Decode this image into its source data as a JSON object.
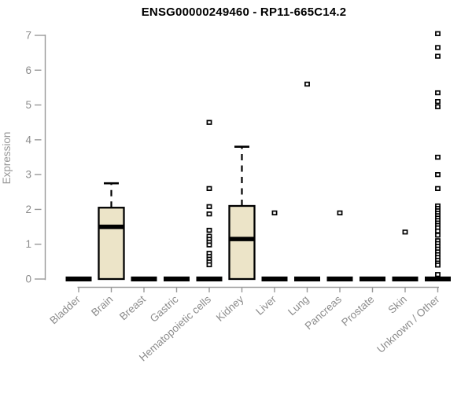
{
  "title": "ENSG00000249460 - RP11-665C14.2",
  "chart_data": {
    "type": "boxplot",
    "title": "ENSG00000249460 - RP11-665C14.2",
    "xlabel": "",
    "ylabel": "Expression",
    "ylim": [
      0,
      7
    ],
    "yticks": [
      0,
      1,
      2,
      3,
      4,
      5,
      6,
      7
    ],
    "grid": false,
    "legend": "none",
    "categories": [
      "Bladder",
      "Brain",
      "Breast",
      "Gastric",
      "Hematopoietic cells",
      "Kidney",
      "Liver",
      "Lung",
      "Pancreas",
      "Prostate",
      "Skin",
      "Unknown / Other"
    ],
    "series": [
      {
        "category": "Bladder",
        "q1": 0,
        "median": 0,
        "q3": 0,
        "whisker_high": null,
        "outliers": []
      },
      {
        "category": "Brain",
        "q1": 0,
        "median": 1.5,
        "q3": 2.05,
        "whisker_high": 2.75,
        "outliers": []
      },
      {
        "category": "Breast",
        "q1": 0,
        "median": 0,
        "q3": 0,
        "whisker_high": null,
        "outliers": []
      },
      {
        "category": "Gastric",
        "q1": 0,
        "median": 0,
        "q3": 0,
        "whisker_high": null,
        "outliers": []
      },
      {
        "category": "Hematopoietic cells",
        "q1": 0,
        "median": 0,
        "q3": 0,
        "whisker_high": null,
        "outliers": [
          4.5,
          2.6,
          2.08,
          1.87,
          1.4,
          1.23,
          1.14,
          1.06,
          0.98,
          0.74,
          0.65,
          0.57,
          0.49,
          0.41
        ]
      },
      {
        "category": "Kidney",
        "q1": 0,
        "median": 1.15,
        "q3": 2.1,
        "whisker_high": 3.8,
        "outliers": []
      },
      {
        "category": "Liver",
        "q1": 0,
        "median": 0,
        "q3": 0,
        "whisker_high": null,
        "outliers": [
          1.9
        ]
      },
      {
        "category": "Lung",
        "q1": 0,
        "median": 0,
        "q3": 0,
        "whisker_high": null,
        "outliers": [
          5.6
        ]
      },
      {
        "category": "Pancreas",
        "q1": 0,
        "median": 0,
        "q3": 0,
        "whisker_high": null,
        "outliers": [
          1.9
        ]
      },
      {
        "category": "Prostate",
        "q1": 0,
        "median": 0,
        "q3": 0,
        "whisker_high": null,
        "outliers": []
      },
      {
        "category": "Skin",
        "q1": 0,
        "median": 0,
        "q3": 0,
        "whisker_high": null,
        "outliers": [
          1.35
        ]
      },
      {
        "category": "Unknown / Other",
        "q1": 0,
        "median": 0,
        "q3": 0,
        "whisker_high": null,
        "outliers": [
          7.05,
          6.65,
          6.4,
          5.35,
          5.1,
          4.95,
          3.5,
          3.0,
          2.6,
          2.1,
          2.03,
          1.96,
          1.89,
          1.82,
          1.75,
          1.68,
          1.61,
          1.54,
          1.47,
          1.38,
          1.26,
          1.1,
          1.02,
          0.94,
          0.86,
          0.78,
          0.7,
          0.62,
          0.54,
          0.46,
          0.4,
          0.13
        ]
      }
    ],
    "colors": {
      "box_fill": "#ece4c8",
      "box_border": "#000000",
      "median": "#000000",
      "axis": "#999999",
      "tick_label": "#8c8c8c",
      "title": "#000000",
      "outlier_fill": "#ffffff",
      "outlier_border": "#000000"
    }
  }
}
